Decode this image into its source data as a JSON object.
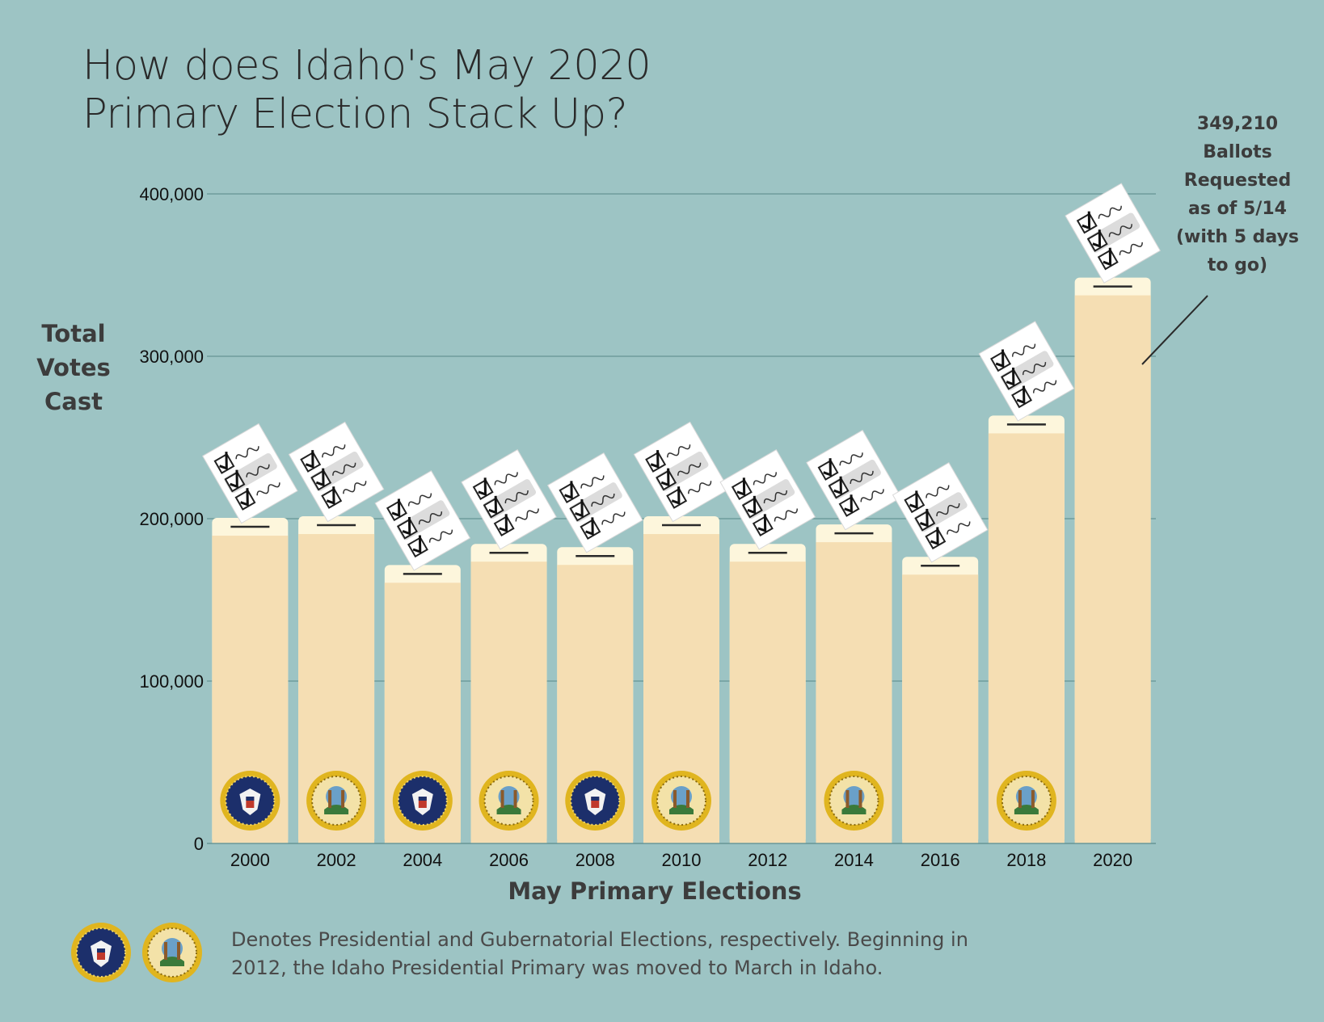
{
  "chart_data": {
    "type": "bar",
    "title": [
      "How does Idaho's May 2020",
      "Primary Election Stack Up?"
    ],
    "ylabel": [
      "Total",
      "Votes",
      "Cast"
    ],
    "xlabel": "May Primary Elections",
    "ylim": [
      0,
      400000
    ],
    "yticks": [
      "0",
      "100,000",
      "200,000",
      "300,000",
      "400,000"
    ],
    "ytick_values": [
      0,
      100000,
      200000,
      300000,
      400000
    ],
    "grid": "horizontal",
    "categories": [
      "2000",
      "2002",
      "2004",
      "2006",
      "2008",
      "2010",
      "2012",
      "2014",
      "2016",
      "2018",
      "2020"
    ],
    "values": [
      195000,
      196000,
      166000,
      179000,
      177000,
      196000,
      179000,
      191000,
      171000,
      258000,
      343000
    ],
    "seals": [
      "presidential",
      "gubernatorial",
      "presidential",
      "gubernatorial",
      "presidential",
      "gubernatorial",
      "none",
      "gubernatorial",
      "none",
      "gubernatorial",
      "none"
    ],
    "annotation": [
      "349,210",
      "Ballots",
      "Requested",
      "as of 5/14",
      "(with 5 days",
      "to go)"
    ],
    "footnote": [
      "Denotes Presidential and Gubernatorial Elections, respectively. Beginning in",
      "2012, the Idaho Presidential Primary was moved to March in Idaho."
    ],
    "colors": {
      "background": "#9dc4c4",
      "bar": "#f5deb3",
      "bar_top": "#fdf6dc",
      "grid": "#6f9c9c",
      "presidential_seal": "#1c2f6b",
      "gubernatorial_seal": "#3a7a3a",
      "seal_rim": "#e0b51f"
    }
  }
}
